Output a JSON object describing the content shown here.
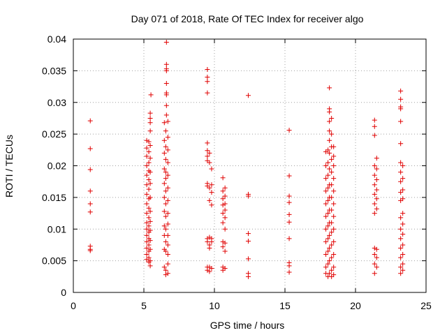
{
  "chart_data": {
    "type": "scatter",
    "title": "Day 071 of 2018, Rate Of TEC Index for receiver algo",
    "xlabel": "GPS time / hours",
    "ylabel": "ROTI / TECUs",
    "xlim": [
      0,
      25
    ],
    "ylim": [
      0,
      0.04
    ],
    "grid": true,
    "x_ticks": [
      0,
      5,
      10,
      15,
      20,
      25
    ],
    "x_tick_labels": [
      "0",
      "5",
      "10",
      "15",
      "20",
      "25"
    ],
    "y_ticks": [
      0,
      0.005,
      0.01,
      0.015,
      0.02,
      0.025,
      0.03,
      0.035,
      0.04
    ],
    "y_tick_labels": [
      "0",
      "0.005",
      "0.01",
      "0.015",
      "0.02",
      "0.025",
      "0.03",
      "0.035",
      "0.04"
    ],
    "marker": "plus",
    "series": [
      {
        "name": "ROTI",
        "color": "#e00000",
        "points": [
          [
            1.2,
            0.0271
          ],
          [
            1.2,
            0.0227
          ],
          [
            1.2,
            0.0194
          ],
          [
            1.2,
            0.016
          ],
          [
            1.2,
            0.014
          ],
          [
            1.2,
            0.0127
          ],
          [
            1.2,
            0.0073
          ],
          [
            1.2,
            0.0068
          ],
          [
            1.2,
            0.0066
          ],
          [
            5.2,
            0.024
          ],
          [
            5.2,
            0.0228
          ],
          [
            5.2,
            0.0215
          ],
          [
            5.2,
            0.02
          ],
          [
            5.2,
            0.0185
          ],
          [
            5.2,
            0.017
          ],
          [
            5.2,
            0.0155
          ],
          [
            5.2,
            0.014
          ],
          [
            5.2,
            0.0125
          ],
          [
            5.2,
            0.011
          ],
          [
            5.2,
            0.01
          ],
          [
            5.2,
            0.009
          ],
          [
            5.2,
            0.008
          ],
          [
            5.2,
            0.007
          ],
          [
            5.2,
            0.006
          ],
          [
            5.2,
            0.0052
          ],
          [
            5.35,
            0.0238
          ],
          [
            5.35,
            0.0222
          ],
          [
            5.35,
            0.0205
          ],
          [
            5.35,
            0.0192
          ],
          [
            5.35,
            0.0178
          ],
          [
            5.35,
            0.0163
          ],
          [
            5.35,
            0.0148
          ],
          [
            5.35,
            0.0133
          ],
          [
            5.35,
            0.0118
          ],
          [
            5.35,
            0.0105
          ],
          [
            5.35,
            0.0095
          ],
          [
            5.35,
            0.0085
          ],
          [
            5.35,
            0.0075
          ],
          [
            5.35,
            0.0065
          ],
          [
            5.35,
            0.0055
          ],
          [
            5.35,
            0.0048
          ],
          [
            5.45,
            0.0283
          ],
          [
            5.45,
            0.0275
          ],
          [
            5.45,
            0.0268
          ],
          [
            5.45,
            0.0255
          ],
          [
            5.45,
            0.0232
          ],
          [
            5.45,
            0.0212
          ],
          [
            5.45,
            0.019
          ],
          [
            5.45,
            0.0172
          ],
          [
            5.45,
            0.015
          ],
          [
            5.45,
            0.0128
          ],
          [
            5.45,
            0.0112
          ],
          [
            5.45,
            0.0098
          ],
          [
            5.45,
            0.0082
          ],
          [
            5.45,
            0.0068
          ],
          [
            5.45,
            0.005
          ],
          [
            5.45,
            0.0042
          ],
          [
            5.5,
            0.0312
          ],
          [
            6.45,
            0.0268
          ],
          [
            6.45,
            0.024
          ],
          [
            6.45,
            0.022
          ],
          [
            6.45,
            0.0195
          ],
          [
            6.45,
            0.0172
          ],
          [
            6.45,
            0.015
          ],
          [
            6.45,
            0.0128
          ],
          [
            6.45,
            0.0105
          ],
          [
            6.45,
            0.009
          ],
          [
            6.45,
            0.0068
          ],
          [
            6.45,
            0.004
          ],
          [
            6.55,
            0.0255
          ],
          [
            6.55,
            0.023
          ],
          [
            6.55,
            0.021
          ],
          [
            6.55,
            0.019
          ],
          [
            6.55,
            0.018
          ],
          [
            6.55,
            0.016
          ],
          [
            6.55,
            0.014
          ],
          [
            6.55,
            0.012
          ],
          [
            6.55,
            0.01
          ],
          [
            6.55,
            0.008
          ],
          [
            6.55,
            0.0065
          ],
          [
            6.55,
            0.0035
          ],
          [
            6.55,
            0.0028
          ],
          [
            6.6,
            0.0395
          ],
          [
            6.6,
            0.036
          ],
          [
            6.6,
            0.0353
          ],
          [
            6.6,
            0.035
          ],
          [
            6.6,
            0.033
          ],
          [
            6.6,
            0.0315
          ],
          [
            6.6,
            0.0312
          ],
          [
            6.6,
            0.0295
          ],
          [
            6.6,
            0.028
          ],
          [
            6.7,
            0.027
          ],
          [
            6.7,
            0.0245
          ],
          [
            6.7,
            0.0225
          ],
          [
            6.7,
            0.0205
          ],
          [
            6.7,
            0.0185
          ],
          [
            6.7,
            0.0165
          ],
          [
            6.7,
            0.0145
          ],
          [
            6.7,
            0.0125
          ],
          [
            6.7,
            0.0108
          ],
          [
            6.7,
            0.009
          ],
          [
            6.7,
            0.0075
          ],
          [
            6.7,
            0.006
          ],
          [
            6.7,
            0.0045
          ],
          [
            6.7,
            0.003
          ],
          [
            9.5,
            0.0352
          ],
          [
            9.5,
            0.034
          ],
          [
            9.5,
            0.0333
          ],
          [
            9.5,
            0.0315
          ],
          [
            9.5,
            0.0236
          ],
          [
            9.5,
            0.0224
          ],
          [
            9.5,
            0.0215
          ],
          [
            9.5,
            0.0208
          ],
          [
            9.5,
            0.0172
          ],
          [
            9.5,
            0.0168
          ],
          [
            9.5,
            0.0085
          ],
          [
            9.5,
            0.008
          ],
          [
            9.5,
            0.004
          ],
          [
            9.5,
            0.0035
          ],
          [
            9.65,
            0.022
          ],
          [
            9.65,
            0.0205
          ],
          [
            9.65,
            0.0165
          ],
          [
            9.65,
            0.0145
          ],
          [
            9.65,
            0.0087
          ],
          [
            9.65,
            0.0075
          ],
          [
            9.65,
            0.007
          ],
          [
            9.65,
            0.004
          ],
          [
            9.65,
            0.0033
          ],
          [
            9.8,
            0.0195
          ],
          [
            9.8,
            0.017
          ],
          [
            9.8,
            0.0158
          ],
          [
            9.8,
            0.0138
          ],
          [
            9.8,
            0.0085
          ],
          [
            9.8,
            0.008
          ],
          [
            9.8,
            0.0038
          ],
          [
            10.6,
            0.0181
          ],
          [
            10.6,
            0.016
          ],
          [
            10.6,
            0.0148
          ],
          [
            10.6,
            0.0138
          ],
          [
            10.6,
            0.0125
          ],
          [
            10.6,
            0.011
          ],
          [
            10.6,
            0.008
          ],
          [
            10.6,
            0.0072
          ],
          [
            10.6,
            0.004
          ],
          [
            10.6,
            0.0035
          ],
          [
            10.75,
            0.0165
          ],
          [
            10.75,
            0.0152
          ],
          [
            10.75,
            0.014
          ],
          [
            10.75,
            0.013
          ],
          [
            10.75,
            0.0118
          ],
          [
            10.75,
            0.01
          ],
          [
            10.75,
            0.0078
          ],
          [
            10.75,
            0.0065
          ],
          [
            10.75,
            0.0038
          ],
          [
            12.4,
            0.0311
          ],
          [
            12.4,
            0.0155
          ],
          [
            12.4,
            0.0152
          ],
          [
            12.4,
            0.0093
          ],
          [
            12.4,
            0.0081
          ],
          [
            12.4,
            0.0053
          ],
          [
            12.4,
            0.003
          ],
          [
            12.4,
            0.0025
          ],
          [
            15.3,
            0.0256
          ],
          [
            15.3,
            0.0184
          ],
          [
            15.3,
            0.0152
          ],
          [
            15.3,
            0.0142
          ],
          [
            15.3,
            0.0123
          ],
          [
            15.3,
            0.0111
          ],
          [
            15.3,
            0.0085
          ],
          [
            15.3,
            0.0047
          ],
          [
            15.3,
            0.0042
          ],
          [
            15.3,
            0.0032
          ],
          [
            17.9,
            0.0222
          ],
          [
            17.9,
            0.02
          ],
          [
            17.9,
            0.018
          ],
          [
            17.9,
            0.016
          ],
          [
            17.9,
            0.014
          ],
          [
            17.9,
            0.012
          ],
          [
            17.9,
            0.01
          ],
          [
            17.9,
            0.008
          ],
          [
            17.9,
            0.006
          ],
          [
            17.9,
            0.004
          ],
          [
            17.9,
            0.003
          ],
          [
            18.05,
            0.0225
          ],
          [
            18.05,
            0.0205
          ],
          [
            18.05,
            0.0185
          ],
          [
            18.05,
            0.0165
          ],
          [
            18.05,
            0.0145
          ],
          [
            18.05,
            0.0125
          ],
          [
            18.05,
            0.0105
          ],
          [
            18.05,
            0.0085
          ],
          [
            18.05,
            0.0065
          ],
          [
            18.05,
            0.0045
          ],
          [
            18.05,
            0.0025
          ],
          [
            18.15,
            0.0323
          ],
          [
            18.15,
            0.029
          ],
          [
            18.15,
            0.0285
          ],
          [
            18.15,
            0.027
          ],
          [
            18.15,
            0.0255
          ],
          [
            18.15,
            0.024
          ],
          [
            18.15,
            0.022
          ],
          [
            18.15,
            0.0195
          ],
          [
            18.15,
            0.017
          ],
          [
            18.15,
            0.015
          ],
          [
            18.15,
            0.013
          ],
          [
            18.15,
            0.011
          ],
          [
            18.15,
            0.009
          ],
          [
            18.15,
            0.007
          ],
          [
            18.15,
            0.005
          ],
          [
            18.15,
            0.003
          ],
          [
            18.3,
            0.0275
          ],
          [
            18.3,
            0.025
          ],
          [
            18.3,
            0.023
          ],
          [
            18.3,
            0.021
          ],
          [
            18.3,
            0.019
          ],
          [
            18.3,
            0.017
          ],
          [
            18.3,
            0.015
          ],
          [
            18.3,
            0.013
          ],
          [
            18.3,
            0.011
          ],
          [
            18.3,
            0.0095
          ],
          [
            18.3,
            0.0075
          ],
          [
            18.3,
            0.0055
          ],
          [
            18.3,
            0.0035
          ],
          [
            18.3,
            0.0025
          ],
          [
            18.45,
            0.023
          ],
          [
            18.45,
            0.0215
          ],
          [
            18.45,
            0.02
          ],
          [
            18.45,
            0.018
          ],
          [
            18.45,
            0.016
          ],
          [
            18.45,
            0.014
          ],
          [
            18.45,
            0.012
          ],
          [
            18.45,
            0.01
          ],
          [
            18.45,
            0.008
          ],
          [
            18.45,
            0.006
          ],
          [
            18.45,
            0.004
          ],
          [
            18.45,
            0.0028
          ],
          [
            21.35,
            0.0272
          ],
          [
            21.35,
            0.0262
          ],
          [
            21.35,
            0.0248
          ],
          [
            21.35,
            0.02
          ],
          [
            21.35,
            0.0185
          ],
          [
            21.35,
            0.017
          ],
          [
            21.35,
            0.0155
          ],
          [
            21.35,
            0.014
          ],
          [
            21.35,
            0.0125
          ],
          [
            21.35,
            0.007
          ],
          [
            21.35,
            0.006
          ],
          [
            21.35,
            0.0045
          ],
          [
            21.35,
            0.003
          ],
          [
            21.5,
            0.0212
          ],
          [
            21.5,
            0.0195
          ],
          [
            21.5,
            0.0178
          ],
          [
            21.5,
            0.0162
          ],
          [
            21.5,
            0.0148
          ],
          [
            21.5,
            0.0132
          ],
          [
            21.5,
            0.0068
          ],
          [
            21.5,
            0.0055
          ],
          [
            21.5,
            0.004
          ],
          [
            23.2,
            0.0318
          ],
          [
            23.2,
            0.0305
          ],
          [
            23.2,
            0.0293
          ],
          [
            23.2,
            0.029
          ],
          [
            23.2,
            0.027
          ],
          [
            23.2,
            0.0235
          ],
          [
            23.2,
            0.0205
          ],
          [
            23.2,
            0.019
          ],
          [
            23.2,
            0.0175
          ],
          [
            23.2,
            0.0158
          ],
          [
            23.2,
            0.0145
          ],
          [
            23.2,
            0.0118
          ],
          [
            23.2,
            0.01
          ],
          [
            23.2,
            0.0085
          ],
          [
            23.2,
            0.007
          ],
          [
            23.2,
            0.0055
          ],
          [
            23.2,
            0.004
          ],
          [
            23.2,
            0.003
          ],
          [
            23.35,
            0.02
          ],
          [
            23.35,
            0.018
          ],
          [
            23.35,
            0.0162
          ],
          [
            23.35,
            0.0148
          ],
          [
            23.35,
            0.0125
          ],
          [
            23.35,
            0.0108
          ],
          [
            23.35,
            0.0092
          ],
          [
            23.35,
            0.0075
          ],
          [
            23.35,
            0.006
          ],
          [
            23.35,
            0.0045
          ],
          [
            23.35,
            0.0035
          ]
        ]
      }
    ]
  }
}
